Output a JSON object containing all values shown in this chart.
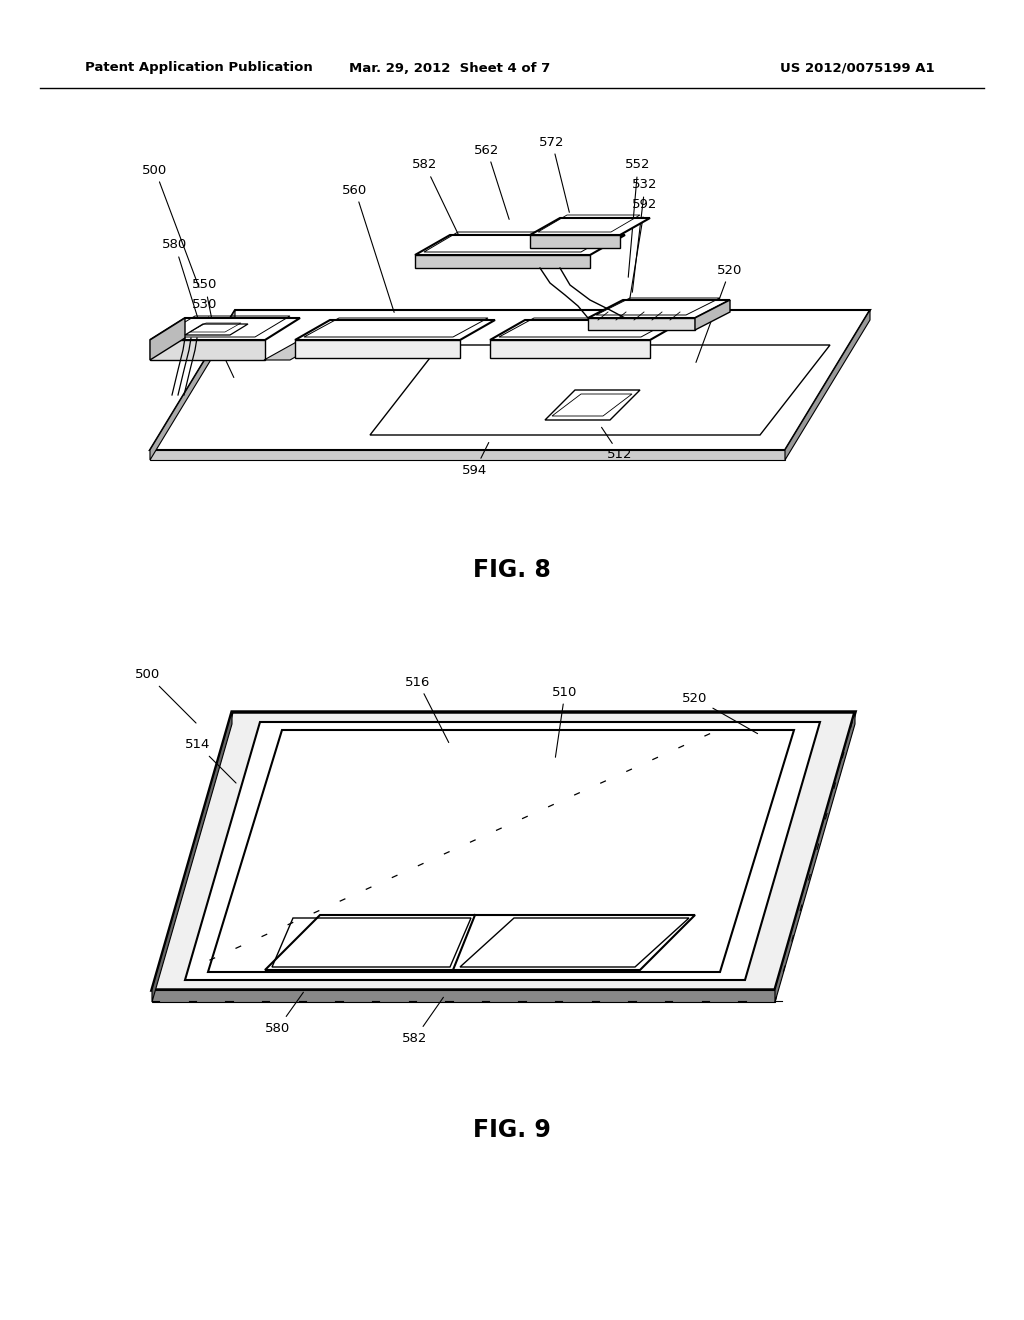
{
  "background_color": "#ffffff",
  "header_left": "Patent Application Publication",
  "header_center": "Mar. 29, 2012  Sheet 4 of 7",
  "header_right": "US 2012/0075199 A1",
  "fig8_label": "FIG. 8",
  "fig9_label": "FIG. 9"
}
